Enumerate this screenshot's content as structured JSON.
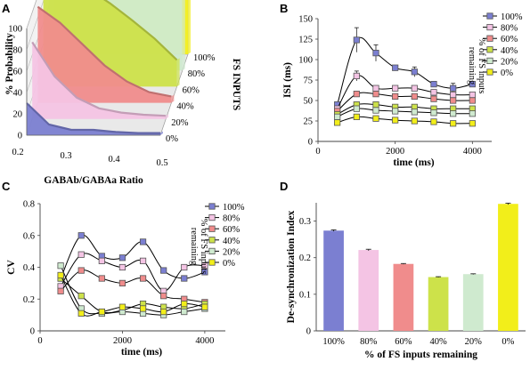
{
  "panels": [
    "A",
    "B",
    "C",
    "D"
  ],
  "chart_data": [
    {
      "panel": "A",
      "type": "area",
      "xlabel": "GABAb/GABAa Ratio",
      "ylabel": "% Probability",
      "zlabel": "FS INPUTS",
      "x_ticks": [
        "0.2",
        "0.3",
        "0.4",
        "0.5"
      ],
      "y_ticks": [
        "0",
        "20",
        "40",
        "60",
        "80",
        "100"
      ],
      "z_ticks": [
        "0%",
        "20%",
        "40%",
        "60%",
        "80%",
        "100%"
      ],
      "ylim": [
        0,
        100
      ],
      "xlim": [
        0.2,
        0.5
      ],
      "x": [
        0.2,
        0.25,
        0.3,
        0.35,
        0.4,
        0.45,
        0.5
      ],
      "series": [
        {
          "fs": "100%",
          "color": "#7b7fd1",
          "values": [
            30,
            10,
            5,
            5,
            3,
            2,
            2
          ]
        },
        {
          "fs": "80%",
          "color": "#f4c4e4",
          "values": [
            72,
            40,
            20,
            10,
            6,
            4,
            3
          ]
        },
        {
          "fs": "60%",
          "color": "#f08c8c",
          "values": [
            90,
            75,
            55,
            35,
            20,
            10,
            6
          ]
        },
        {
          "fs": "40%",
          "color": "#cde24a",
          "values": [
            100,
            100,
            92,
            78,
            62,
            45,
            25
          ]
        },
        {
          "fs": "20%",
          "color": "#cfeacf",
          "values": [
            100,
            100,
            100,
            100,
            100,
            100,
            88
          ]
        },
        {
          "fs": "0%",
          "color": "#f2ee1a",
          "values": [
            100,
            100,
            100,
            100,
            100,
            100,
            100
          ]
        }
      ]
    },
    {
      "panel": "B",
      "type": "line",
      "xlabel": "time (ms)",
      "ylabel": "ISI (ms)",
      "legend_title": "% of FS inputs remaining",
      "x": [
        500,
        1000,
        1500,
        2000,
        2500,
        3000,
        3500,
        4000
      ],
      "xlim": [
        0,
        4500
      ],
      "ylim": [
        0,
        150
      ],
      "x_ticks": [
        "0",
        "2000",
        "4000"
      ],
      "y_ticks": [
        "0",
        "25",
        "50",
        "75",
        "100",
        "125",
        "150"
      ],
      "series": [
        {
          "name": "100%",
          "color": "#7b7fd1",
          "values": [
            45,
            124,
            108,
            90,
            85,
            70,
            65,
            70
          ],
          "errors": [
            3,
            15,
            10,
            3,
            6,
            3,
            6,
            3
          ]
        },
        {
          "name": "80%",
          "color": "#f4c4e4",
          "values": [
            40,
            80,
            65,
            65,
            65,
            60,
            57,
            57
          ],
          "errors": [
            2,
            6,
            3,
            2,
            2,
            2,
            2,
            2
          ]
        },
        {
          "name": "60%",
          "color": "#f08c8c",
          "values": [
            37,
            58,
            58,
            55,
            55,
            52,
            50,
            50
          ],
          "errors": [
            1,
            2,
            1,
            1,
            1,
            1,
            1,
            1
          ]
        },
        {
          "name": "40%",
          "color": "#cde24a",
          "values": [
            33,
            45,
            45,
            42,
            42,
            40,
            40,
            40
          ],
          "errors": [
            1,
            1,
            1,
            1,
            1,
            1,
            1,
            1
          ]
        },
        {
          "name": "20%",
          "color": "#cfeacf",
          "values": [
            30,
            40,
            38,
            37,
            36,
            35,
            34,
            34
          ],
          "errors": [
            1,
            1,
            1,
            1,
            1,
            1,
            1,
            1
          ]
        },
        {
          "name": "0%",
          "color": "#f2ee1a",
          "values": [
            23,
            30,
            28,
            26,
            25,
            24,
            22,
            22
          ],
          "errors": [
            1,
            1,
            1,
            1,
            1,
            1,
            1,
            1
          ]
        }
      ]
    },
    {
      "panel": "C",
      "type": "line",
      "xlabel": "time (ms)",
      "ylabel": "CV",
      "legend_title": "% of FS inputs remaining",
      "x": [
        500,
        1000,
        1500,
        2000,
        2500,
        3000,
        3500,
        4000
      ],
      "xlim": [
        0,
        4500
      ],
      "ylim": [
        0,
        0.8
      ],
      "x_ticks": [
        "0",
        "2000",
        "4000"
      ],
      "y_ticks": [
        "0",
        "0.2",
        "0.4",
        "0.6",
        "0.8"
      ],
      "series": [
        {
          "name": "100%",
          "color": "#7b7fd1",
          "values": [
            0.33,
            0.6,
            0.47,
            0.46,
            0.56,
            0.38,
            0.33,
            0.37
          ]
        },
        {
          "name": "80%",
          "color": "#f4c4e4",
          "values": [
            0.28,
            0.48,
            0.44,
            0.4,
            0.44,
            0.25,
            0.4,
            0.41
          ]
        },
        {
          "name": "60%",
          "color": "#f08c8c",
          "values": [
            0.25,
            0.38,
            0.33,
            0.3,
            0.33,
            0.22,
            0.2,
            0.18
          ]
        },
        {
          "name": "40%",
          "color": "#cde24a",
          "values": [
            0.33,
            0.22,
            0.12,
            0.13,
            0.17,
            0.15,
            0.14,
            0.17
          ]
        },
        {
          "name": "20%",
          "color": "#cfeacf",
          "values": [
            0.41,
            0.14,
            0.11,
            0.12,
            0.11,
            0.1,
            0.12,
            0.14
          ]
        },
        {
          "name": "0%",
          "color": "#f2ee1a",
          "values": [
            0.35,
            0.11,
            0.12,
            0.15,
            0.14,
            0.12,
            0.17,
            0.15
          ]
        }
      ]
    },
    {
      "panel": "D",
      "type": "bar",
      "xlabel": "% of FS inputs remaining",
      "ylabel": "De-synchronization Index",
      "categories": [
        "100%",
        "80%",
        "60%",
        "40%",
        "20%",
        "0%"
      ],
      "colors": [
        "#7b7fd1",
        "#f4c4e4",
        "#f08c8c",
        "#cde24a",
        "#cfeacf",
        "#f2ee1a"
      ],
      "values": [
        0.274,
        0.221,
        0.183,
        0.147,
        0.155,
        0.347
      ],
      "errors": [
        0.002,
        0.002,
        0.001,
        0.001,
        0.001,
        0.002
      ],
      "ylim": [
        0,
        0.35
      ],
      "y_ticks": [
        "0",
        "0.1",
        "0.2",
        "0.3"
      ]
    }
  ]
}
